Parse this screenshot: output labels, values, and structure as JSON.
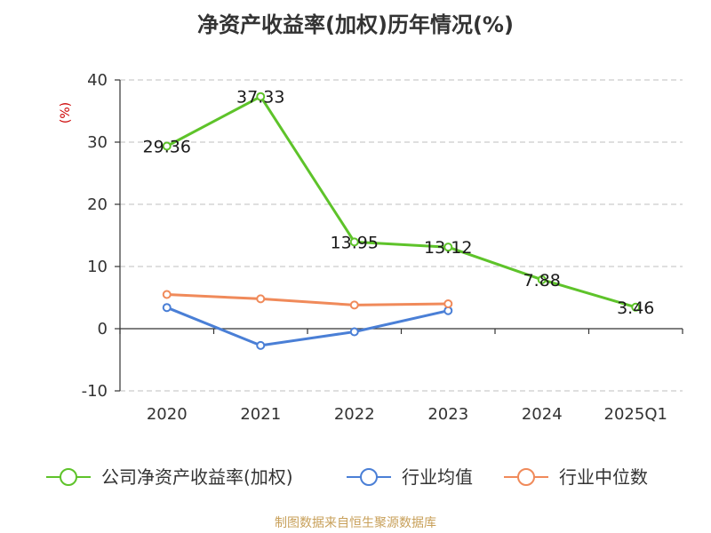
{
  "chart_data": {
    "type": "line",
    "title": "净资产收益率(加权)历年情况(%)",
    "unit_label": "(%)",
    "categories": [
      "2020",
      "2021",
      "2022",
      "2023",
      "2024",
      "2025Q1"
    ],
    "ylim": [
      -10,
      40
    ],
    "yticks": [
      "-10",
      "0",
      "10",
      "20",
      "30",
      "40"
    ],
    "grid": true,
    "legend_position": "bottom",
    "series": [
      {
        "name": "公司净资产收益率(加权)",
        "color": "#5ec32a",
        "values": [
          29.36,
          37.33,
          13.95,
          13.12,
          7.88,
          3.46
        ],
        "labels": [
          "29.36",
          "37.33",
          "13.95",
          "13.12",
          "7.88",
          "3.46"
        ]
      },
      {
        "name": "行业均值",
        "color": "#4a7fd6",
        "values": [
          3.4,
          -2.7,
          -0.5,
          2.9,
          null,
          null
        ]
      },
      {
        "name": "行业中位数",
        "color": "#f08a5a",
        "values": [
          5.5,
          4.8,
          3.8,
          4.0,
          null,
          null
        ]
      }
    ]
  },
  "source": "制图数据来自恒生聚源数据库"
}
